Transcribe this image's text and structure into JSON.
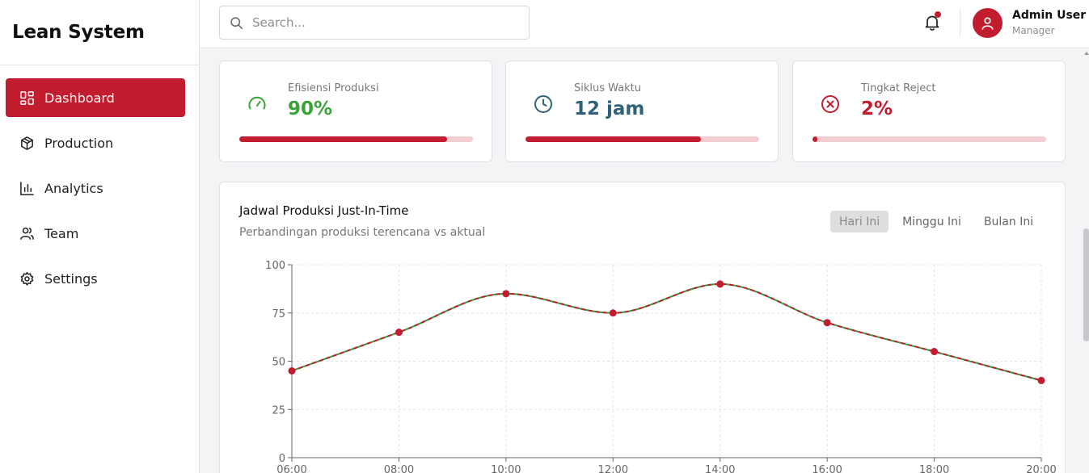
{
  "brand": "Lean System",
  "sidebar": {
    "items": [
      {
        "label": "Dashboard",
        "icon": "dashboard-icon",
        "active": true
      },
      {
        "label": "Production",
        "icon": "box-icon",
        "active": false
      },
      {
        "label": "Analytics",
        "icon": "bar-chart-icon",
        "active": false
      },
      {
        "label": "Team",
        "icon": "users-icon",
        "active": false
      },
      {
        "label": "Settings",
        "icon": "gear-icon",
        "active": false
      }
    ]
  },
  "topbar": {
    "search_placeholder": "Search...",
    "user_name": "Admin User",
    "user_role": "Manager",
    "has_notification": true
  },
  "stats": [
    {
      "label": "Efisiensi Produksi",
      "value": "90%",
      "progress": 0.89,
      "color": "#3aa336",
      "icon": "gauge-icon"
    },
    {
      "label": "Siklus Waktu",
      "value": "12 jam",
      "progress": 0.75,
      "color": "#2f6279",
      "icon": "clock-icon"
    },
    {
      "label": "Tingkat Reject",
      "value": "2%",
      "progress": 0.02,
      "color": "#c11d2f",
      "icon": "x-circle-icon"
    }
  ],
  "chart": {
    "title": "Jadwal Produksi Just-In-Time",
    "subtitle": "Perbandingan produksi terencana vs aktual",
    "tabs": [
      {
        "label": "Hari Ini",
        "active": true
      },
      {
        "label": "Minggu Ini",
        "active": false
      },
      {
        "label": "Bulan Ini",
        "active": false
      }
    ]
  },
  "chart_data": {
    "type": "line",
    "x": [
      "06:00",
      "08:00",
      "10:00",
      "12:00",
      "14:00",
      "16:00",
      "18:00",
      "20:00"
    ],
    "series": [
      {
        "values": [
          45,
          65,
          85,
          75,
          90,
          70,
          55,
          40
        ],
        "color": "#2e9e3a",
        "style": "solid"
      },
      {
        "values": [
          45,
          65,
          85,
          75,
          90,
          70,
          55,
          40
        ],
        "color": "#c11d2f",
        "style": "dashed",
        "markers": true
      }
    ],
    "yticks": [
      0,
      25,
      50,
      75,
      100
    ],
    "ylim": [
      0,
      100
    ],
    "grid": true,
    "grid_color": "#e4e4e8",
    "curve": "smooth"
  }
}
